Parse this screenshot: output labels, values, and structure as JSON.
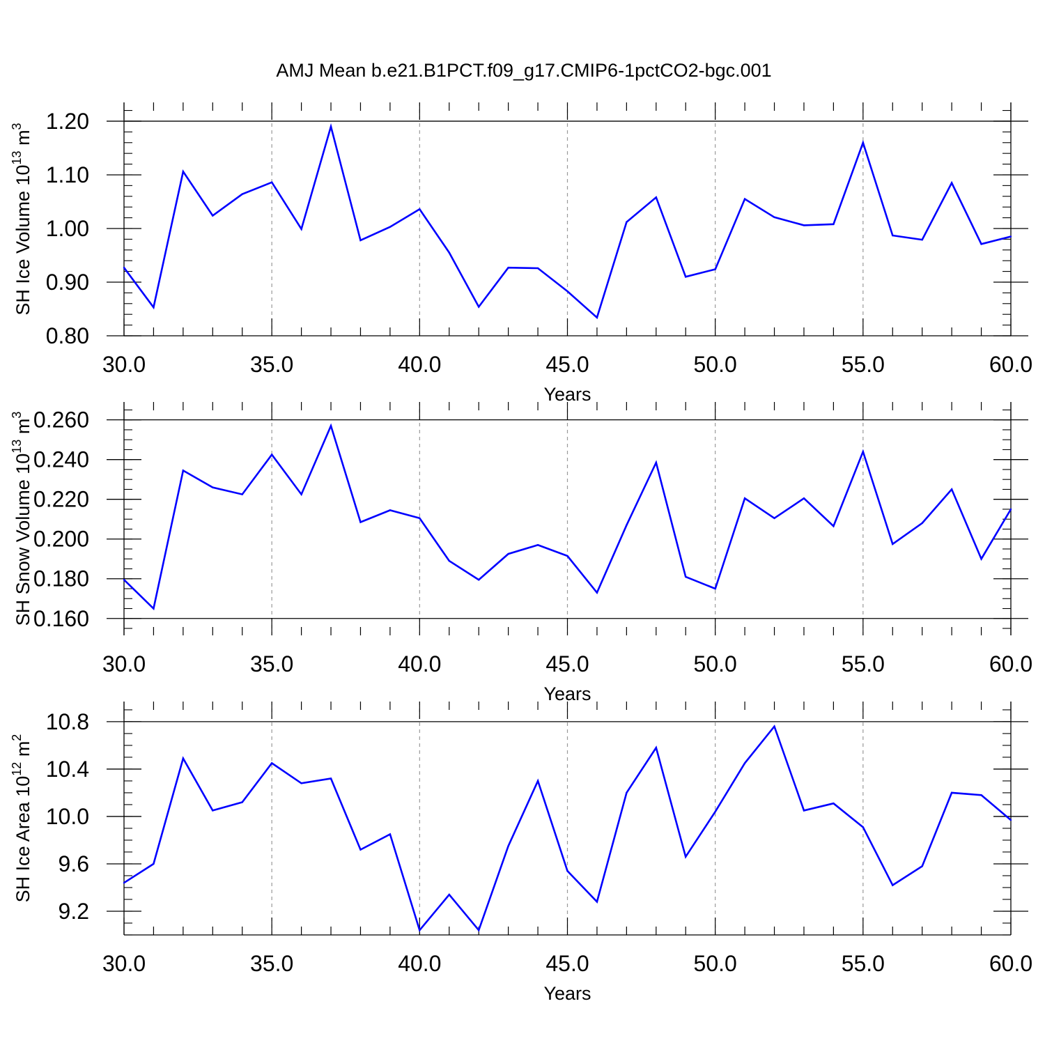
{
  "title": "AMJ Mean b.e21.B1PCT.f09_g17.CMIP6-1pctCO2-bgc.001",
  "colors": {
    "line": "#0000ff",
    "grid": "#999999",
    "axis": "#000000"
  },
  "chart_data": [
    {
      "type": "line",
      "xlabel": "Years",
      "ylabel": "SH Ice Volume 10",
      "ylabel_exp": "13",
      "ylabel_unit": "m",
      "ylabel_unit_exp": "3",
      "xlim": [
        30,
        60
      ],
      "ylim": [
        0.8,
        1.235
      ],
      "grid": "vertical dashed at major x ticks",
      "x_ticks": [
        30,
        35,
        40,
        45,
        50,
        55,
        60
      ],
      "x_tick_labels": [
        "30.0",
        "35.0",
        "40.0",
        "45.0",
        "50.0",
        "55.0",
        "60.0"
      ],
      "y_ticks": [
        0.8,
        0.9,
        1.0,
        1.1,
        1.2
      ],
      "y_tick_labels": [
        "0.80",
        "0.90",
        "1.00",
        "1.10",
        "1.20"
      ],
      "y_minor_step": 0.02,
      "x": [
        30,
        31,
        32,
        33,
        34,
        35,
        36,
        37,
        38,
        39,
        40,
        41,
        42,
        43,
        44,
        45,
        46,
        47,
        48,
        49,
        50,
        51,
        52,
        53,
        54,
        55,
        56,
        57,
        58,
        59,
        60
      ],
      "values": [
        0.927,
        0.853,
        1.106,
        1.024,
        1.064,
        1.086,
        0.999,
        1.19,
        0.978,
        1.003,
        1.036,
        0.955,
        0.854,
        0.927,
        0.926,
        0.883,
        0.834,
        1.012,
        1.058,
        0.91,
        0.924,
        1.055,
        1.021,
        1.006,
        1.008,
        1.16,
        0.987,
        0.979,
        1.085,
        0.971,
        0.985
      ]
    },
    {
      "type": "line",
      "xlabel": "Years",
      "ylabel": "SH Snow Volume 10",
      "ylabel_exp": "13",
      "ylabel_unit": "m",
      "ylabel_unit_exp": "3",
      "xlim": [
        30,
        60
      ],
      "ylim": [
        0.1515,
        0.269
      ],
      "grid": "vertical dashed at major x ticks",
      "x_ticks": [
        30,
        35,
        40,
        45,
        50,
        55,
        60
      ],
      "x_tick_labels": [
        "30.0",
        "35.0",
        "40.0",
        "45.0",
        "50.0",
        "55.0",
        "60.0"
      ],
      "y_ticks": [
        0.16,
        0.18,
        0.2,
        0.22,
        0.24,
        0.26
      ],
      "y_tick_labels": [
        "0.160",
        "0.180",
        "0.200",
        "0.220",
        "0.240",
        "0.260"
      ],
      "y_minor_step": 0.005,
      "x": [
        30,
        31,
        32,
        33,
        34,
        35,
        36,
        37,
        38,
        39,
        40,
        41,
        42,
        43,
        44,
        45,
        46,
        47,
        48,
        49,
        50,
        51,
        52,
        53,
        54,
        55,
        56,
        57,
        58,
        59,
        60
      ],
      "values": [
        0.1795,
        0.165,
        0.2345,
        0.226,
        0.2225,
        0.2425,
        0.2225,
        0.257,
        0.2085,
        0.2145,
        0.2105,
        0.189,
        0.1795,
        0.1925,
        0.197,
        0.1915,
        0.173,
        0.207,
        0.2385,
        0.181,
        0.175,
        0.2205,
        0.2105,
        0.2205,
        0.2065,
        0.244,
        0.1975,
        0.208,
        0.225,
        0.19,
        0.215
      ]
    },
    {
      "type": "line",
      "xlabel": "Years",
      "ylabel": "SH Ice Area 10",
      "ylabel_exp": "12",
      "ylabel_unit": "m",
      "ylabel_unit_exp": "2",
      "xlim": [
        30,
        60
      ],
      "ylim": [
        9.0,
        10.97
      ],
      "grid": "vertical dashed at major x ticks",
      "x_ticks": [
        30,
        35,
        40,
        45,
        50,
        55,
        60
      ],
      "x_tick_labels": [
        "30.0",
        "35.0",
        "40.0",
        "45.0",
        "50.0",
        "55.0",
        "60.0"
      ],
      "y_ticks": [
        9.2,
        9.6,
        10.0,
        10.4,
        10.8
      ],
      "y_tick_labels": [
        "9.2",
        "9.6",
        "10.0",
        "10.4",
        "10.8"
      ],
      "y_minor_step": 0.1,
      "x": [
        30,
        31,
        32,
        33,
        34,
        35,
        36,
        37,
        38,
        39,
        40,
        41,
        42,
        43,
        44,
        45,
        46,
        47,
        48,
        49,
        50,
        51,
        52,
        53,
        54,
        55,
        56,
        57,
        58,
        59,
        60
      ],
      "values": [
        9.44,
        9.6,
        10.49,
        10.05,
        10.12,
        10.45,
        10.28,
        10.32,
        9.72,
        9.85,
        9.04,
        9.34,
        9.04,
        9.75,
        10.3,
        9.54,
        9.28,
        10.2,
        10.58,
        9.66,
        10.04,
        10.45,
        10.76,
        10.05,
        10.11,
        9.91,
        9.42,
        9.58,
        10.2,
        10.18,
        9.97
      ]
    }
  ]
}
